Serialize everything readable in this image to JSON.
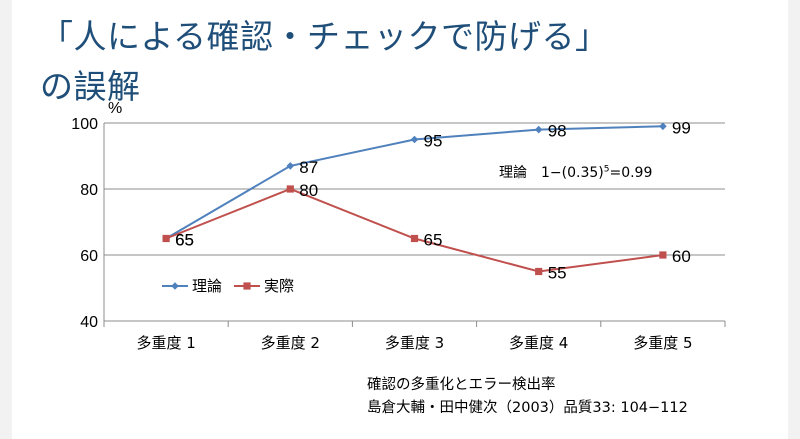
{
  "slide": {
    "title_line1": "「人による確認・チェックで防げる」",
    "title_line2": "の誤解",
    "annotation": {
      "prefix": "理論　1−(0.35)",
      "exponent": "5",
      "suffix": "=0.99"
    },
    "source_line1": "確認の多重化とエラー検出率",
    "source_line2": "島倉大輔・田中健次（2003）品質33: 104−112"
  },
  "chart_data": {
    "type": "line",
    "title": "",
    "ylabel": "%",
    "xlabel": "",
    "ylim": [
      40,
      100
    ],
    "yticks": [
      40,
      60,
      80,
      100
    ],
    "grid": true,
    "legend_position": "left-middle",
    "categories": [
      "多重度 1",
      "多重度 2",
      "多重度 3",
      "多重度 4",
      "多重度 5"
    ],
    "series": [
      {
        "name": "理論",
        "marker": "diamond",
        "color": "#4f81bd",
        "values": [
          65,
          87,
          95,
          98,
          99
        ]
      },
      {
        "name": "実際",
        "marker": "square",
        "color": "#c0504d",
        "values": [
          65,
          80,
          65,
          55,
          60
        ]
      }
    ]
  }
}
